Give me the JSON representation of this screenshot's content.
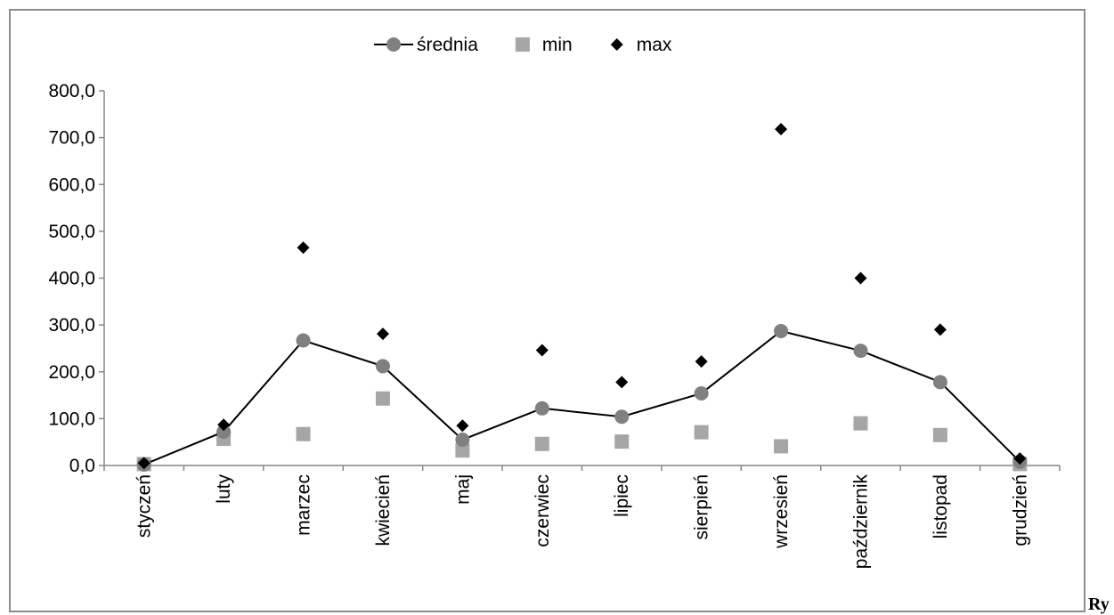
{
  "chart_data": {
    "type": "line",
    "categories": [
      "styczeń",
      "luty",
      "marzec",
      "kwiecień",
      "maj",
      "czerwiec",
      "lipiec",
      "sierpień",
      "wrzesień",
      "październik",
      "listopad",
      "grudzień"
    ],
    "series": [
      {
        "name": "średnia",
        "marker": "circle",
        "line": true,
        "color": "#808080",
        "line_color": "#000000",
        "values": [
          2,
          72,
          267,
          212,
          55,
          122,
          104,
          154,
          287,
          245,
          178,
          8
        ]
      },
      {
        "name": "min",
        "marker": "square",
        "line": false,
        "color": "#a6a6a6",
        "values": [
          3,
          57,
          67,
          143,
          32,
          46,
          51,
          71,
          41,
          90,
          65,
          3
        ]
      },
      {
        "name": "max",
        "marker": "diamond",
        "line": false,
        "color": "#000000",
        "values": [
          5,
          87,
          465,
          281,
          85,
          246,
          178,
          222,
          718,
          400,
          290,
          15
        ]
      }
    ],
    "ylim": [
      0,
      800
    ],
    "yticks": [
      "0,0",
      "100,0",
      "200,0",
      "300,0",
      "400,0",
      "500,0",
      "600,0",
      "700,0",
      "800,0"
    ],
    "ytick_values": [
      0,
      100,
      200,
      300,
      400,
      500,
      600,
      700,
      800
    ],
    "legend_position": "top",
    "grid": false
  },
  "caption_fragment": "Ry"
}
